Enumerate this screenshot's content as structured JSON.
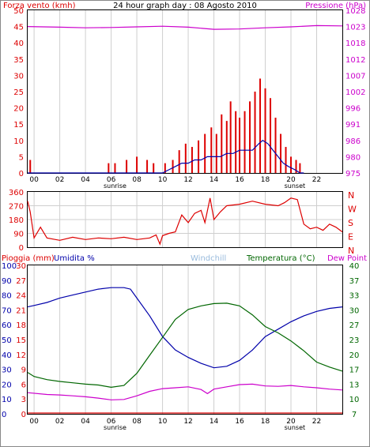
{
  "colors": {
    "red": "#dd0000",
    "blue": "#0000aa",
    "magenta": "#cc00cc",
    "green": "#006600",
    "grid": "#cfcfcf",
    "light_blue": "#99bbdd"
  },
  "chart_data": [
    {
      "type": "line",
      "title": "24 hour graph day : 08 Agosto 2010",
      "left_label": "Forza vento (kmh)",
      "right_label": "Pressione (hPa)",
      "x_ticks": [
        "00",
        "02",
        "04",
        "06",
        "08",
        "10",
        "12",
        "14",
        "16",
        "18",
        "20",
        "22"
      ],
      "sunrise_label": "sunrise",
      "sunset_label": "sunset",
      "sunrise_hour": 6.3,
      "sunset_hour": 20.3,
      "xlim": [
        -0.5,
        24
      ],
      "y_left_ticks": [
        "0",
        "5",
        "10",
        "15",
        "20",
        "25",
        "30",
        "35",
        "40",
        "45",
        "50"
      ],
      "y_right_ticks": [
        "975",
        "980",
        "986",
        "991",
        "996",
        "1002",
        "1007",
        "1012",
        "1018",
        "1023",
        "1028"
      ],
      "ylim_left": [
        0,
        50
      ],
      "ylim_right": [
        975,
        1028
      ],
      "series": [
        {
          "role": "gust",
          "color": "#dd0000",
          "style": "bars",
          "points": [
            [
              -0.3,
              4
            ],
            [
              5.8,
              3
            ],
            [
              6.3,
              3
            ],
            [
              7.2,
              4
            ],
            [
              8.0,
              5
            ],
            [
              8.8,
              4
            ],
            [
              9.3,
              3
            ],
            [
              10.2,
              3
            ],
            [
              10.8,
              4
            ],
            [
              11.3,
              7
            ],
            [
              11.8,
              9
            ],
            [
              12.3,
              8
            ],
            [
              12.8,
              10
            ],
            [
              13.3,
              12
            ],
            [
              13.8,
              14
            ],
            [
              14.2,
              12
            ],
            [
              14.6,
              18
            ],
            [
              15.0,
              16
            ],
            [
              15.3,
              22
            ],
            [
              15.7,
              19
            ],
            [
              16.0,
              17
            ],
            [
              16.4,
              19
            ],
            [
              16.8,
              22
            ],
            [
              17.2,
              25
            ],
            [
              17.6,
              29
            ],
            [
              18.0,
              26
            ],
            [
              18.4,
              23
            ],
            [
              18.8,
              17
            ],
            [
              19.2,
              12
            ],
            [
              19.6,
              8
            ],
            [
              20.0,
              5
            ],
            [
              20.4,
              4
            ],
            [
              20.7,
              3
            ]
          ]
        },
        {
          "role": "wind",
          "color": "#0000aa",
          "style": "line",
          "points": [
            [
              -0.5,
              0
            ],
            [
              10.0,
              0
            ],
            [
              10.5,
              1
            ],
            [
              11.0,
              2
            ],
            [
              11.5,
              3
            ],
            [
              12.0,
              3
            ],
            [
              12.5,
              4
            ],
            [
              13.0,
              4
            ],
            [
              13.5,
              5
            ],
            [
              14.0,
              5
            ],
            [
              14.5,
              5
            ],
            [
              15.0,
              6
            ],
            [
              15.5,
              6
            ],
            [
              16.0,
              7
            ],
            [
              16.5,
              7
            ],
            [
              17.0,
              7
            ],
            [
              17.5,
              9
            ],
            [
              17.8,
              10
            ],
            [
              18.2,
              9
            ],
            [
              18.6,
              7
            ],
            [
              19.0,
              5
            ],
            [
              19.4,
              3
            ],
            [
              19.8,
              2
            ],
            [
              20.3,
              1
            ],
            [
              20.7,
              0
            ],
            [
              21.0,
              0
            ]
          ]
        },
        {
          "role": "pressure",
          "axis": "right",
          "color": "#cc00cc",
          "style": "line",
          "points": [
            [
              -0.5,
              1022.7
            ],
            [
              2,
              1022.5
            ],
            [
              4,
              1022.3
            ],
            [
              6,
              1022.4
            ],
            [
              8,
              1022.6
            ],
            [
              10,
              1022.8
            ],
            [
              12,
              1022.5
            ],
            [
              14,
              1021.8
            ],
            [
              16,
              1021.9
            ],
            [
              18,
              1022.3
            ],
            [
              20,
              1022.6
            ],
            [
              22,
              1023.0
            ],
            [
              24,
              1022.9
            ]
          ]
        }
      ]
    },
    {
      "type": "line",
      "y_left_ticks": [
        "0",
        "90",
        "180",
        "270",
        "360"
      ],
      "y_right_ticks": [
        "N",
        "E",
        "S",
        "W",
        "N"
      ],
      "ylim": [
        0,
        360
      ],
      "series": [
        {
          "role": "direction",
          "color": "#dd0000",
          "points": [
            [
              -0.5,
              300
            ],
            [
              -0.3,
              230
            ],
            [
              0,
              60
            ],
            [
              0.5,
              130
            ],
            [
              1,
              60
            ],
            [
              2,
              45
            ],
            [
              3,
              65
            ],
            [
              4,
              50
            ],
            [
              5,
              60
            ],
            [
              6,
              55
            ],
            [
              7,
              65
            ],
            [
              8,
              50
            ],
            [
              9,
              60
            ],
            [
              9.5,
              80
            ],
            [
              9.8,
              20
            ],
            [
              10,
              75
            ],
            [
              10.5,
              90
            ],
            [
              11,
              100
            ],
            [
              11.5,
              210
            ],
            [
              12,
              160
            ],
            [
              12.5,
              220
            ],
            [
              13,
              240
            ],
            [
              13.3,
              160
            ],
            [
              13.7,
              320
            ],
            [
              14,
              180
            ],
            [
              14.5,
              230
            ],
            [
              15,
              270
            ],
            [
              16,
              280
            ],
            [
              17,
              300
            ],
            [
              18,
              280
            ],
            [
              19,
              270
            ],
            [
              19.5,
              290
            ],
            [
              20,
              320
            ],
            [
              20.5,
              310
            ],
            [
              21,
              150
            ],
            [
              21.5,
              120
            ],
            [
              22,
              130
            ],
            [
              22.5,
              110
            ],
            [
              23,
              150
            ],
            [
              23.5,
              130
            ],
            [
              24,
              100
            ]
          ]
        }
      ]
    },
    {
      "type": "line",
      "top_labels": {
        "rain": "Pioggia (mm)",
        "humidity": "Umidita %",
        "windchill": "Windchill",
        "temperature": "Temperatura (°C)",
        "dewpoint": "Dew Point"
      },
      "x_ticks": [
        "00",
        "02",
        "04",
        "06",
        "08",
        "10",
        "12",
        "14",
        "16",
        "18",
        "20",
        "22"
      ],
      "sunrise_label": "sunrise",
      "sunset_label": "sunset",
      "y_hum_ticks": [
        "0",
        "10",
        "20",
        "30",
        "40",
        "50",
        "60",
        "70",
        "80",
        "90",
        "100"
      ],
      "y_rain_ticks": [
        "0",
        "3",
        "6",
        "9",
        "12",
        "15",
        "18",
        "21",
        "24",
        "27",
        "30"
      ],
      "y_temp_ticks": [
        "7",
        "10",
        "13",
        "17",
        "20",
        "23",
        "27",
        "30",
        "33",
        "37",
        "40"
      ],
      "ylim_humidity": [
        0,
        100
      ],
      "ylim_temperature": [
        7,
        40
      ],
      "series": [
        {
          "role": "humidity",
          "color": "#0000aa",
          "points": [
            [
              -0.5,
              72
            ],
            [
              0,
              73
            ],
            [
              1,
              75
            ],
            [
              2,
              78
            ],
            [
              3,
              80
            ],
            [
              4,
              82
            ],
            [
              5,
              84
            ],
            [
              6,
              85
            ],
            [
              7,
              85
            ],
            [
              7.5,
              84
            ],
            [
              8,
              78
            ],
            [
              9,
              66
            ],
            [
              10,
              52
            ],
            [
              11,
              43
            ],
            [
              12,
              38
            ],
            [
              13,
              34
            ],
            [
              14,
              31
            ],
            [
              15,
              32
            ],
            [
              16,
              36
            ],
            [
              17,
              43
            ],
            [
              18,
              52
            ],
            [
              19,
              57
            ],
            [
              20,
              62
            ],
            [
              21,
              66
            ],
            [
              22,
              69
            ],
            [
              23,
              71
            ],
            [
              24,
              72
            ]
          ]
        },
        {
          "role": "temperature",
          "color": "#006600",
          "points": [
            [
              -0.5,
              16.2
            ],
            [
              0,
              15.3
            ],
            [
              1,
              14.6
            ],
            [
              2,
              14.2
            ],
            [
              3,
              13.9
            ],
            [
              4,
              13.6
            ],
            [
              5,
              13.4
            ],
            [
              6,
              12.9
            ],
            [
              7,
              13.3
            ],
            [
              8,
              16.0
            ],
            [
              9,
              20.0
            ],
            [
              10,
              24.0
            ],
            [
              11,
              28.0
            ],
            [
              12,
              30.2
            ],
            [
              13,
              31.0
            ],
            [
              14,
              31.5
            ],
            [
              15,
              31.6
            ],
            [
              16,
              31.0
            ],
            [
              17,
              29.0
            ],
            [
              18,
              26.4
            ],
            [
              19,
              25.0
            ],
            [
              20,
              23.2
            ],
            [
              21,
              21.0
            ],
            [
              22,
              18.5
            ],
            [
              23,
              17.4
            ],
            [
              24,
              16.5
            ]
          ]
        },
        {
          "role": "dewpoint",
          "color": "#cc00cc",
          "points": [
            [
              -0.5,
              11.7
            ],
            [
              1,
              11.3
            ],
            [
              2,
              11.2
            ],
            [
              3,
              11.0
            ],
            [
              4,
              10.8
            ],
            [
              5,
              10.5
            ],
            [
              6,
              10.1
            ],
            [
              7,
              10.2
            ],
            [
              8,
              11.0
            ],
            [
              9,
              12.0
            ],
            [
              10,
              12.6
            ],
            [
              11,
              12.8
            ],
            [
              12,
              13.0
            ],
            [
              13,
              12.4
            ],
            [
              13.5,
              11.5
            ],
            [
              14,
              12.5
            ],
            [
              15,
              13.0
            ],
            [
              16,
              13.5
            ],
            [
              17,
              13.6
            ],
            [
              18,
              13.2
            ],
            [
              19,
              13.1
            ],
            [
              20,
              13.3
            ],
            [
              21,
              13.0
            ],
            [
              22,
              12.8
            ],
            [
              23,
              12.5
            ],
            [
              24,
              12.3
            ]
          ]
        },
        {
          "role": "rain",
          "color": "#dd0000",
          "points": [
            [
              -0.5,
              0
            ],
            [
              24,
              0
            ]
          ]
        }
      ]
    }
  ]
}
